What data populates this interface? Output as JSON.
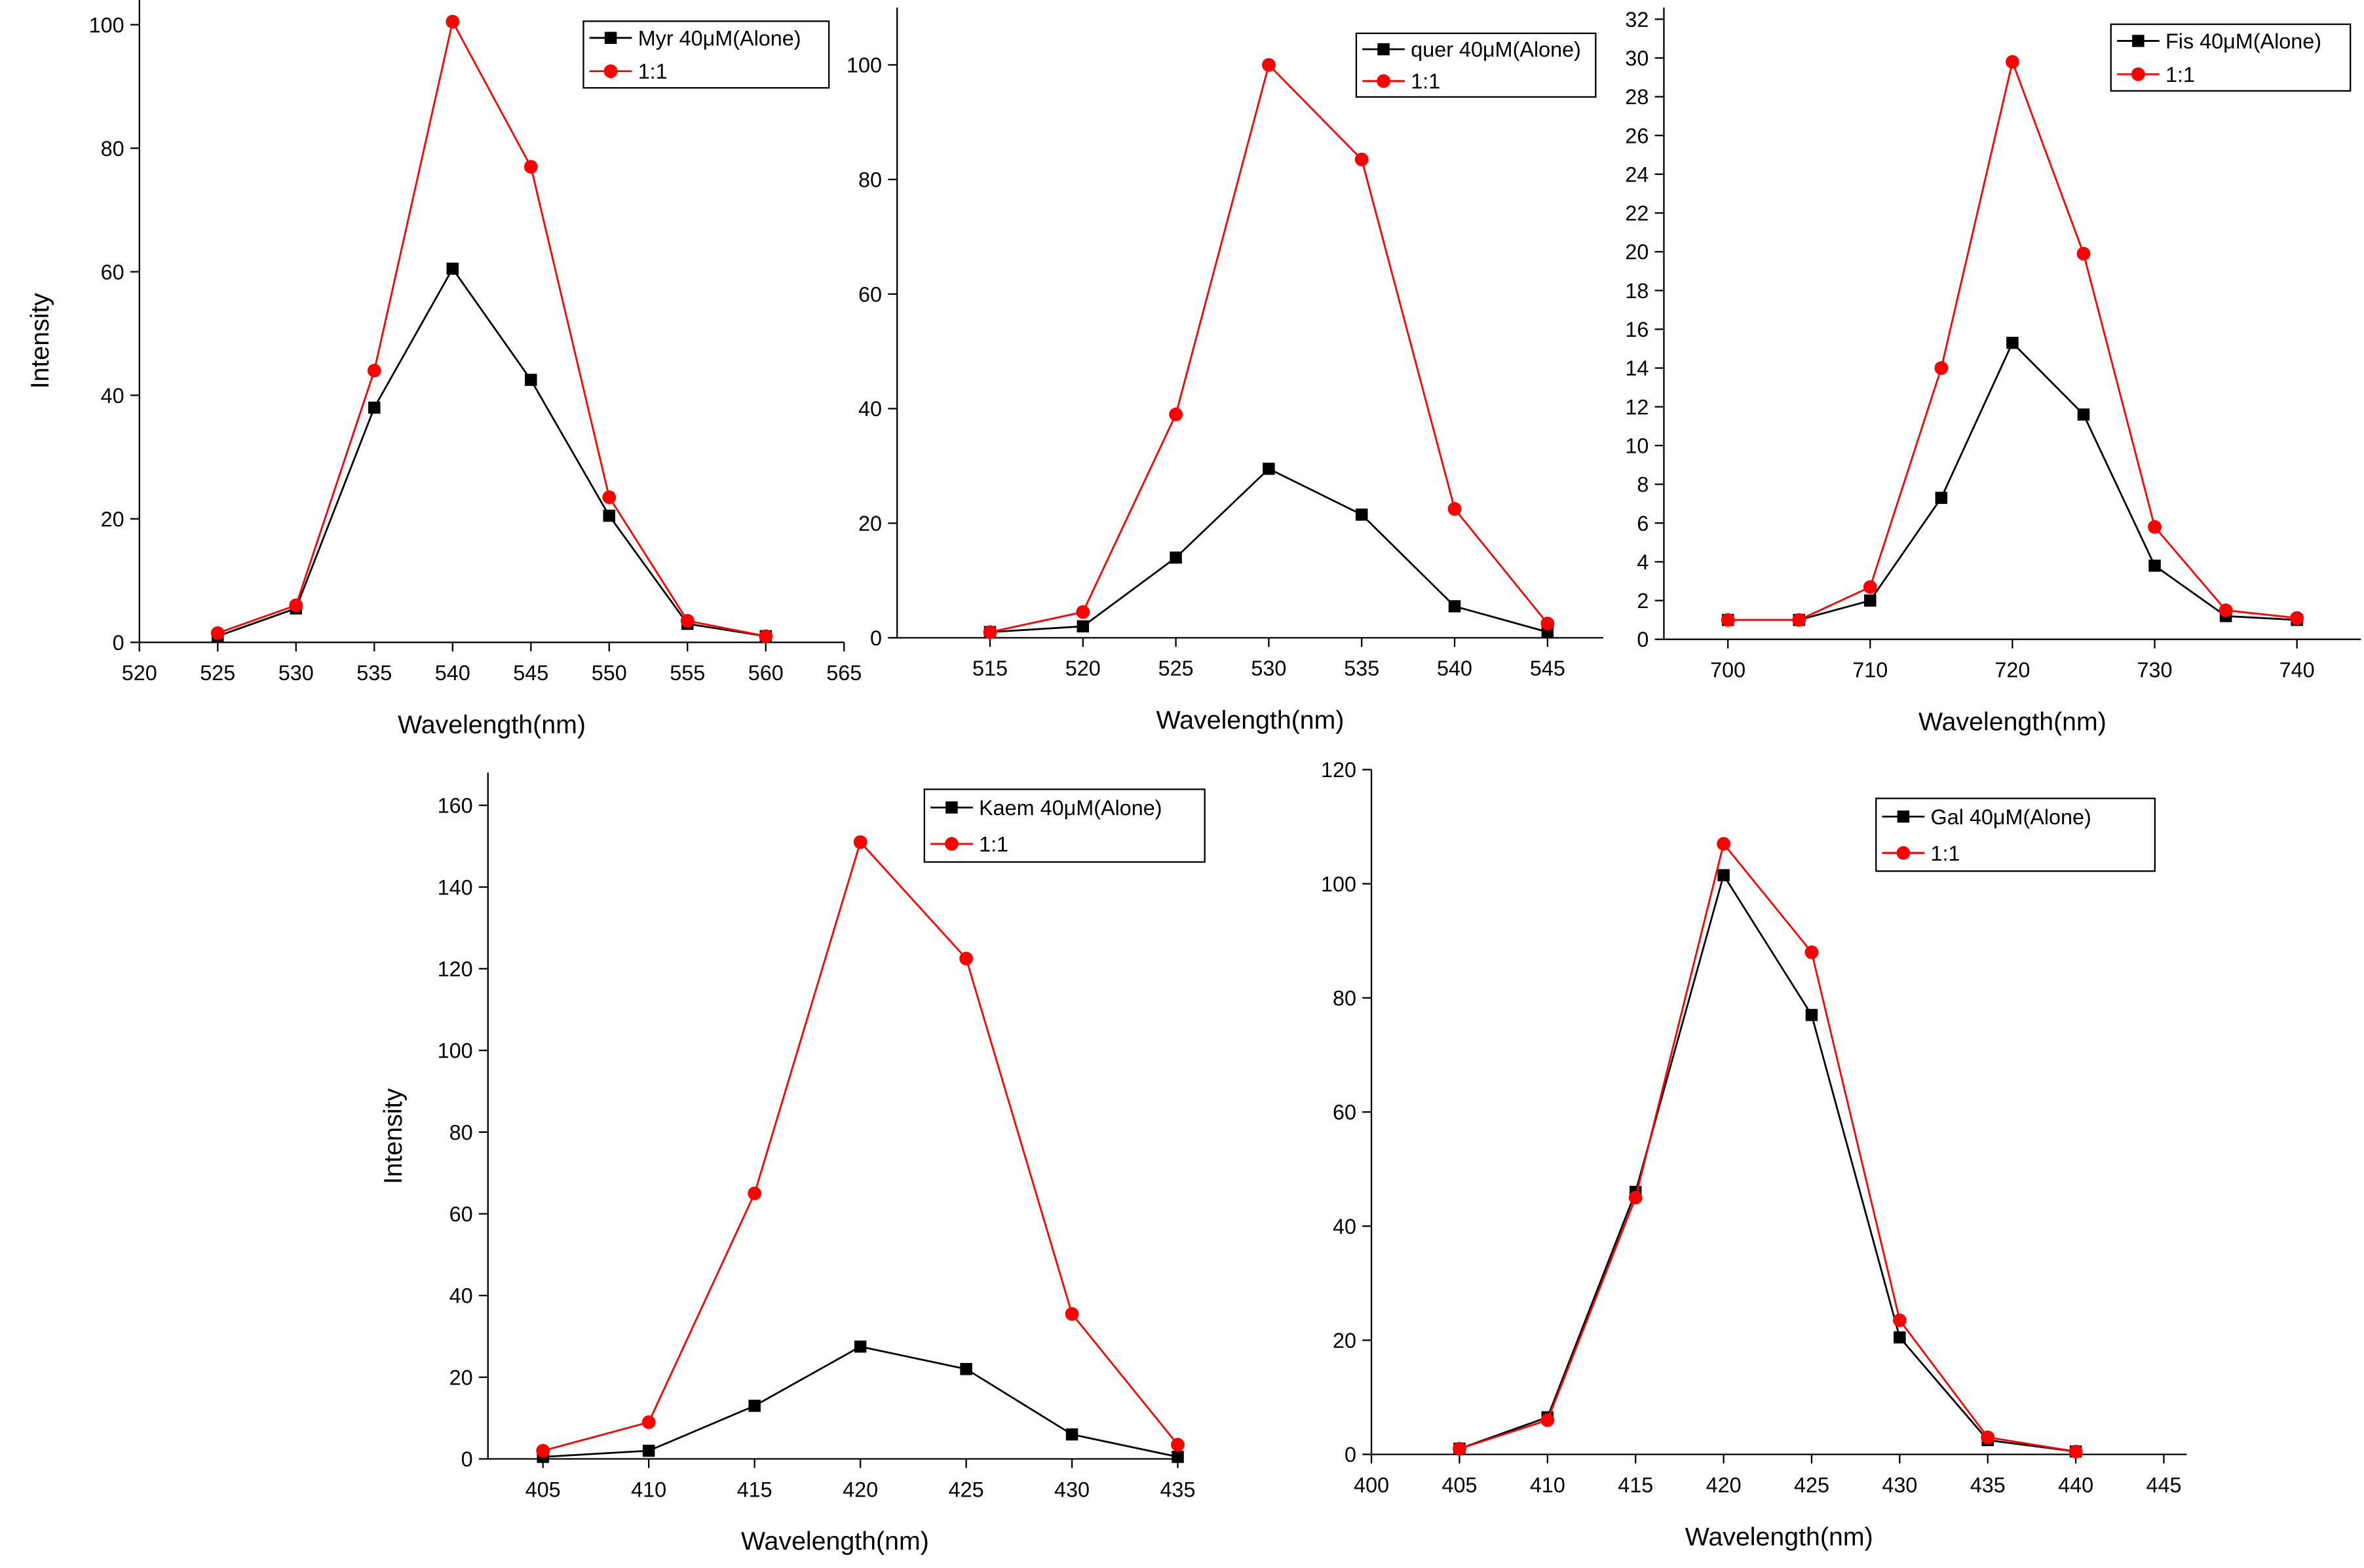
{
  "chart_data": [
    {
      "type": "line",
      "x_label": "Wavelength(nm)",
      "y_label": "Intensity",
      "x": [
        525,
        530,
        535,
        540,
        545,
        550,
        555,
        560
      ],
      "xlim": [
        520,
        565
      ],
      "xticks": [
        520,
        525,
        530,
        535,
        540,
        545,
        550,
        555,
        560,
        565
      ],
      "ylim": [
        0,
        104
      ],
      "yticks": [
        0,
        20,
        40,
        60,
        80,
        100
      ],
      "series": [
        {
          "name": "Myr 40μM(Alone)",
          "color": "#000000",
          "marker": "square",
          "values": [
            1,
            5.5,
            38,
            60.5,
            42.5,
            20.5,
            3,
            1
          ]
        },
        {
          "name": "1:1",
          "color": "#ff0000",
          "marker": "circle",
          "values": [
            1.5,
            6,
            44,
            100.5,
            77,
            23.5,
            3.5,
            1
          ]
        }
      ]
    },
    {
      "type": "line",
      "x_label": "Wavelength(nm)",
      "x": [
        515,
        520,
        525,
        530,
        535,
        540,
        545
      ],
      "xlim": [
        510,
        548
      ],
      "xticks": [
        515,
        520,
        525,
        530,
        535,
        540,
        545
      ],
      "ylim": [
        0,
        110
      ],
      "yticks": [
        0,
        20,
        40,
        60,
        80,
        100
      ],
      "series": [
        {
          "name": "quer 40μM(Alone)",
          "color": "#000000",
          "marker": "square",
          "values": [
            1,
            2,
            14,
            29.5,
            21.5,
            5.5,
            1
          ]
        },
        {
          "name": "1:1",
          "color": "#ff0000",
          "marker": "circle",
          "values": [
            1,
            4.5,
            39,
            100,
            83.5,
            22.5,
            2.5
          ]
        }
      ]
    },
    {
      "type": "line",
      "x_label": "Wavelength(nm)",
      "x": [
        700,
        705,
        710,
        715,
        720,
        725,
        730,
        735,
        740
      ],
      "xlim": [
        695.5,
        744.5
      ],
      "xticks": [
        700,
        710,
        720,
        730,
        740
      ],
      "ylim": [
        0,
        32.6
      ],
      "yticks": [
        0,
        2,
        4,
        6,
        8,
        10,
        12,
        14,
        16,
        18,
        20,
        22,
        24,
        26,
        28,
        30,
        32
      ],
      "series": [
        {
          "name": "Fis 40μM(Alone)",
          "color": "#000000",
          "marker": "square",
          "values": [
            1,
            1,
            2,
            7.3,
            15.3,
            11.6,
            3.8,
            1.2,
            1
          ]
        },
        {
          "name": "1:1",
          "color": "#ff0000",
          "marker": "circle",
          "values": [
            1,
            1,
            2.7,
            14,
            29.8,
            19.9,
            5.8,
            1.5,
            1.1
          ]
        }
      ]
    },
    {
      "type": "line",
      "x_label": "Wavelength(nm)",
      "y_label": "Intensity",
      "x": [
        405,
        410,
        415,
        420,
        425,
        430,
        435
      ],
      "xlim": [
        402.4,
        435.2
      ],
      "xticks": [
        405,
        410,
        415,
        420,
        425,
        430,
        435
      ],
      "ylim": [
        0,
        168
      ],
      "yticks": [
        0,
        20,
        40,
        60,
        80,
        100,
        120,
        140,
        160
      ],
      "series": [
        {
          "name": "Kaem 40μM(Alone)",
          "color": "#000000",
          "marker": "square",
          "values": [
            0.5,
            2,
            13,
            27.5,
            22,
            6,
            0.5
          ]
        },
        {
          "name": "1:1",
          "color": "#ff0000",
          "marker": "circle",
          "values": [
            2,
            9,
            65,
            151,
            122.5,
            35.5,
            3.5
          ]
        }
      ]
    },
    {
      "type": "line",
      "x_label": "Wavelength(nm)",
      "x": [
        405,
        410,
        415,
        420,
        425,
        430,
        435,
        440
      ],
      "xlim": [
        400,
        446.3
      ],
      "xticks": [
        400,
        405,
        410,
        415,
        420,
        425,
        430,
        435,
        440,
        445
      ],
      "ylim": [
        0,
        120
      ],
      "yticks": [
        0,
        20,
        40,
        60,
        80,
        100,
        120
      ],
      "series": [
        {
          "name": "Gal 40μM(Alone)",
          "color": "#000000",
          "marker": "square",
          "values": [
            1,
            6.5,
            46,
            101.5,
            77,
            20.5,
            2.5,
            0.5
          ]
        },
        {
          "name": "1:1",
          "color": "#ff0000",
          "marker": "circle",
          "values": [
            1,
            6,
            45,
            107,
            88,
            23.5,
            3,
            0.5
          ]
        }
      ]
    }
  ]
}
